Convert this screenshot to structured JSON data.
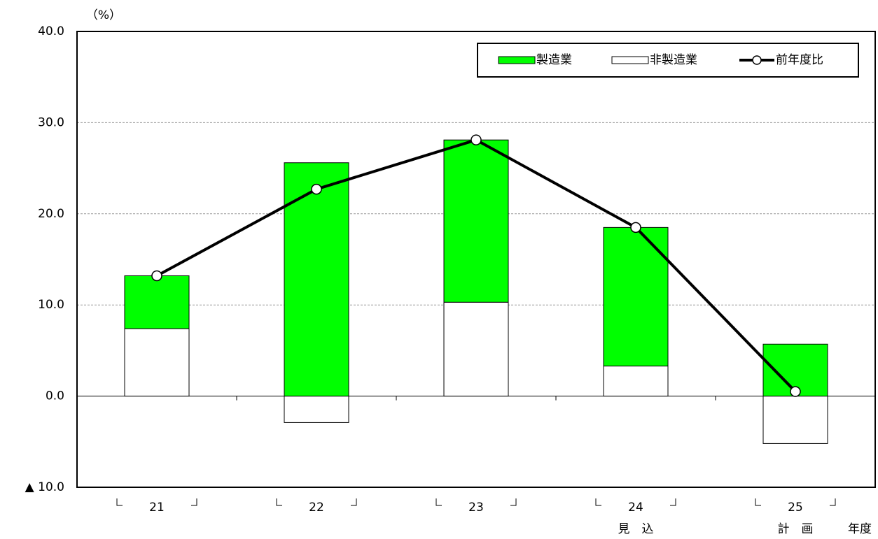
{
  "chart_data": {
    "type": "bar",
    "unit_label": "（%）",
    "x_unit_label": "年度",
    "categories": [
      "21",
      "22",
      "23",
      "24",
      "25"
    ],
    "sublabels": [
      null,
      null,
      null,
      "見　込",
      "計　画"
    ],
    "series": [
      {
        "name": "非製造業",
        "color": "#ffffff",
        "kind": "bar",
        "values": [
          7.4,
          -2.9,
          10.3,
          3.3,
          -5.2
        ]
      },
      {
        "name": "製造業",
        "color": "#00ff00",
        "kind": "bar",
        "values": [
          5.8,
          25.6,
          17.8,
          15.2,
          5.7
        ]
      },
      {
        "name": "前年度比",
        "color": "#000000",
        "kind": "line",
        "values": [
          13.2,
          22.7,
          28.1,
          18.5,
          0.5
        ]
      }
    ],
    "legend_order": [
      1,
      0,
      2
    ],
    "ylim": [
      -10,
      40
    ],
    "yticks": [
      {
        "value": -10,
        "label": "▲ 10.0"
      },
      {
        "value": 0,
        "label": "0.0"
      },
      {
        "value": 10,
        "label": "10.0"
      },
      {
        "value": 20,
        "label": "20.0"
      },
      {
        "value": 30,
        "label": "30.0"
      },
      {
        "value": 40,
        "label": "40.0"
      }
    ],
    "grid": true,
    "legend": "top-right"
  }
}
